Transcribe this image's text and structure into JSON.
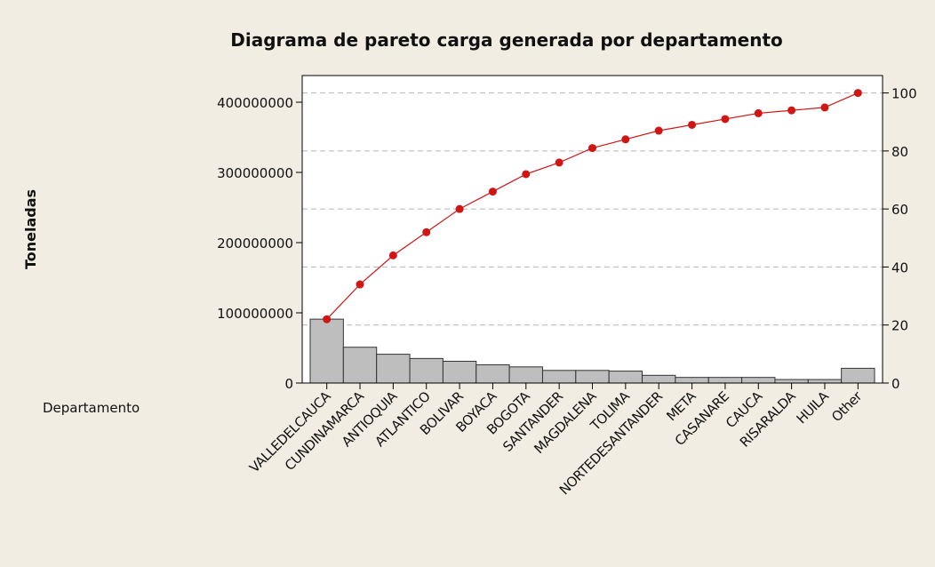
{
  "chart_data": {
    "type": "pareto",
    "title": "Diagrama de pareto carga generada por departamento",
    "ylabel": "Toneladas",
    "xlabel": "Departamento",
    "categories": [
      "VALLEDELCAUCA",
      "CUNDINAMARCA",
      "ANTIOQUIA",
      "ATLANTICO",
      "BOLIVAR",
      "BOYACA",
      "BOGOTA",
      "SANTANDER",
      "MAGDALENA",
      "TOLIMA",
      "NORTEDESANTANDER",
      "META",
      "CASANARE",
      "CAUCA",
      "RISARALDA",
      "HUILA",
      "Other"
    ],
    "series": [
      {
        "type": "bar",
        "color": "#bebebe",
        "values": [
          91000000,
          51000000,
          41000000,
          35000000,
          31000000,
          26000000,
          23000000,
          18000000,
          18000000,
          17000000,
          11000000,
          8000000,
          8000000,
          8000000,
          5000000,
          5000000,
          21000000
        ]
      },
      {
        "type": "line",
        "color": "#d01515",
        "axis": "y2",
        "values": [
          22,
          34,
          44,
          52,
          60,
          66,
          72,
          76,
          81,
          84,
          87,
          89,
          91,
          93,
          94,
          95,
          100
        ]
      }
    ],
    "ylim": [
      0,
      438000000
    ],
    "yticks": [
      0,
      100000000,
      200000000,
      300000000,
      400000000
    ],
    "y2lim": [
      0,
      106
    ],
    "y2ticks": [
      0,
      20,
      40,
      60,
      80,
      100
    ],
    "grid": true
  }
}
